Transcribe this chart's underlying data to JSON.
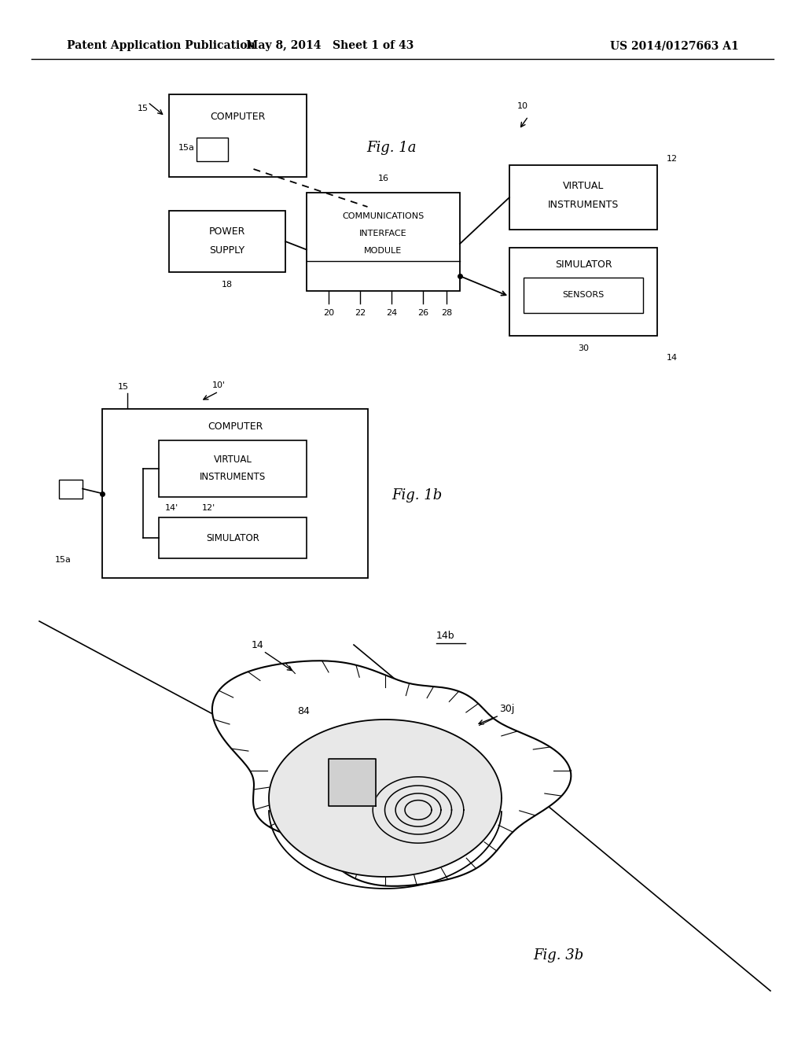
{
  "bg_color": "#ffffff",
  "header_left": "Patent Application Publication",
  "header_mid": "May 8, 2014   Sheet 1 of 43",
  "header_right": "US 2014/0127663 A1"
}
